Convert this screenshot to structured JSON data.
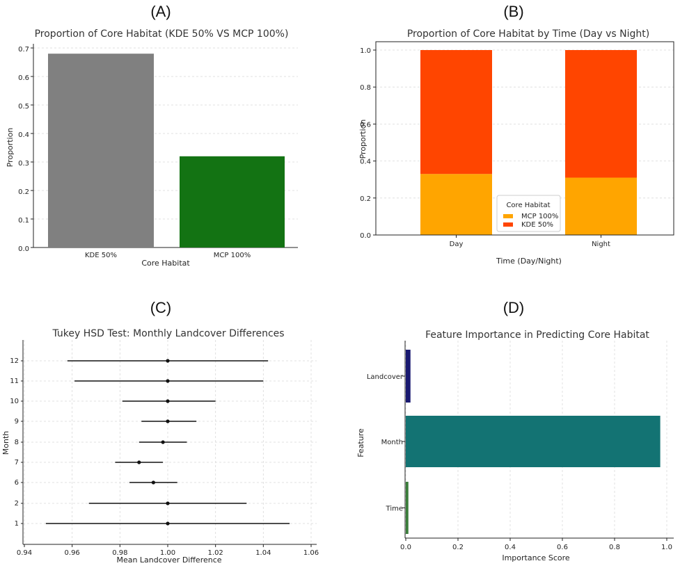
{
  "panels": {
    "a": {
      "label": "(A)"
    },
    "b": {
      "label": "(B)"
    },
    "c": {
      "label": "(C)"
    },
    "d": {
      "label": "(D)"
    }
  },
  "colors": {
    "kde": "#808080",
    "mcp": "#137313",
    "mcp_stack": "#FFA500",
    "kde_stack": "#FF4500",
    "landcover": "#191970",
    "month": "#137373",
    "time": "#3a7d3a"
  },
  "chart_data": [
    {
      "id": "a",
      "type": "bar",
      "title": "Proportion of Core Habitat (KDE 50% VS MCP 100%)",
      "categories": [
        "KDE 50%",
        "MCP 100%"
      ],
      "values": [
        0.68,
        0.32
      ],
      "xlabel": "Core Habitat",
      "ylabel": "Proportion",
      "ylim": [
        0,
        0.7
      ],
      "yticks": [
        "0.0",
        "0.1",
        "0.2",
        "0.3",
        "0.4",
        "0.5",
        "0.6",
        "0.7"
      ],
      "grid": true
    },
    {
      "id": "b",
      "type": "bar",
      "stacked": true,
      "title": "Proportion of Core Habitat by Time (Day vs Night)",
      "categories": [
        "Day",
        "Night"
      ],
      "series": [
        {
          "name": "MCP 100%",
          "values": [
            0.33,
            0.31
          ]
        },
        {
          "name": "KDE 50%",
          "values": [
            0.67,
            0.69
          ]
        }
      ],
      "xlabel": "Time (Day/Night)",
      "ylabel": "Proportion",
      "ylim": [
        0,
        1.0
      ],
      "yticks": [
        "0.0",
        "0.2",
        "0.4",
        "0.6",
        "0.8",
        "1.0"
      ],
      "legend_title": "Core Habitat",
      "legend_position": "lower-center",
      "grid": true
    },
    {
      "id": "c",
      "type": "scatter",
      "subtype": "errorbar",
      "title": "Tukey HSD Test: Monthly Landcover Differences",
      "categories": [
        "12",
        "11",
        "10",
        "9",
        "8",
        "7",
        "6",
        "2",
        "1"
      ],
      "means": [
        1.0,
        1.0,
        1.0,
        1.0,
        0.998,
        0.988,
        0.994,
        1.0,
        1.0
      ],
      "lower": [
        0.958,
        0.961,
        0.981,
        0.989,
        0.988,
        0.978,
        0.984,
        0.967,
        0.949
      ],
      "upper": [
        1.042,
        1.04,
        1.02,
        1.012,
        1.008,
        0.998,
        1.004,
        1.033,
        1.051
      ],
      "xlabel": "Mean Landcover Difference",
      "ylabel": "Month",
      "xlim": [
        0.94,
        1.06
      ],
      "xticks": [
        "0.94",
        "0.96",
        "0.98",
        "1.00",
        "1.02",
        "1.04",
        "1.06"
      ],
      "grid": true
    },
    {
      "id": "d",
      "type": "bar",
      "orientation": "horizontal",
      "title": "Feature Importance in Predicting Core Habitat",
      "categories": [
        "Landcover",
        "Month",
        "Time"
      ],
      "values": [
        0.018,
        0.975,
        0.01
      ],
      "xlabel": "Importance Score",
      "ylabel": "Feature",
      "xlim": [
        0,
        1.0
      ],
      "xticks": [
        "0.0",
        "0.2",
        "0.4",
        "0.6",
        "0.8",
        "1.0"
      ],
      "grid": true
    }
  ]
}
